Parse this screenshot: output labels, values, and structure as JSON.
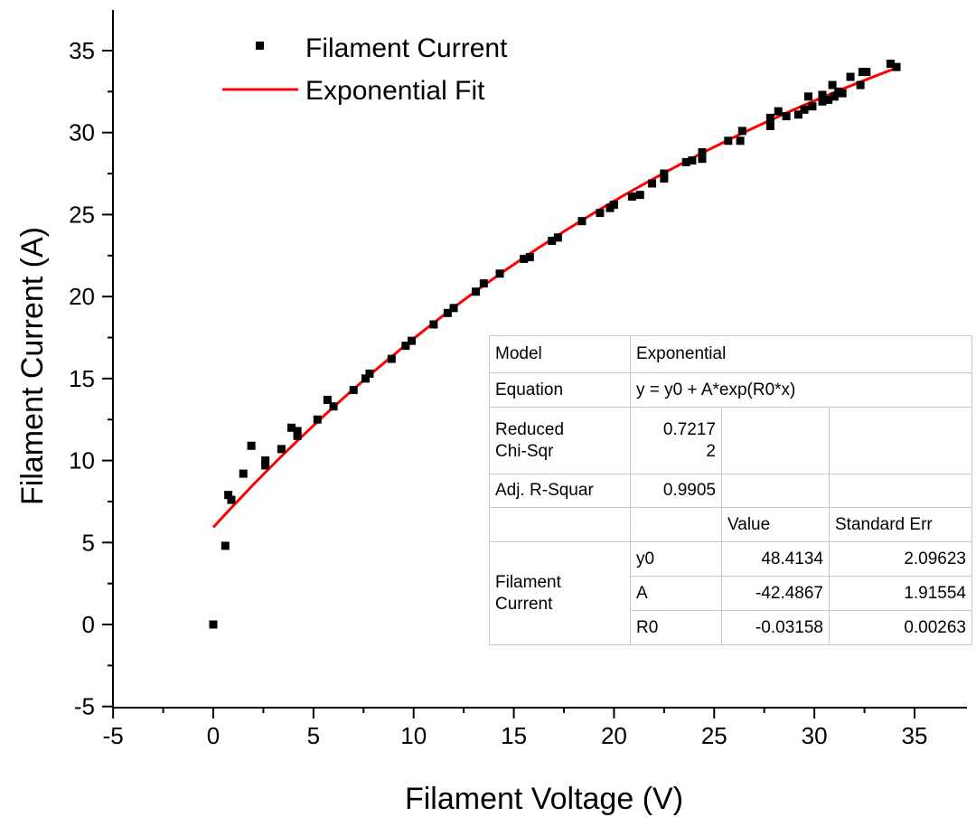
{
  "chart_data": {
    "type": "scatter",
    "xlabel": "Filament Voltage (V)",
    "ylabel": "Filament Current (A)",
    "xlim": [
      -5,
      37
    ],
    "ylim": [
      -5,
      37
    ],
    "x_ticks": [
      "-5",
      "0",
      "5",
      "10",
      "15",
      "20",
      "25",
      "30",
      "35"
    ],
    "y_ticks": [
      "-5",
      "0",
      "5",
      "10",
      "15",
      "20",
      "25",
      "30",
      "35"
    ],
    "grid": false,
    "legend_position": "top-left",
    "legend": [
      "Filament Current",
      "Exponential Fit"
    ],
    "series": [
      {
        "name": "Filament Current",
        "marker": "square",
        "color": "#000000",
        "points": [
          [
            0.0,
            0.0
          ],
          [
            0.6,
            4.8
          ],
          [
            0.75,
            7.9
          ],
          [
            0.9,
            7.6
          ],
          [
            1.5,
            9.2
          ],
          [
            1.9,
            10.9
          ],
          [
            2.6,
            9.7
          ],
          [
            2.6,
            10.0
          ],
          [
            3.4,
            10.7
          ],
          [
            3.9,
            12.0
          ],
          [
            4.2,
            11.5
          ],
          [
            4.2,
            11.8
          ],
          [
            5.2,
            12.5
          ],
          [
            5.7,
            13.7
          ],
          [
            6.0,
            13.3
          ],
          [
            7.0,
            14.3
          ],
          [
            7.6,
            15.0
          ],
          [
            7.8,
            15.3
          ],
          [
            8.9,
            16.2
          ],
          [
            9.6,
            17.0
          ],
          [
            9.9,
            17.3
          ],
          [
            11.0,
            18.3
          ],
          [
            11.7,
            19.0
          ],
          [
            12.0,
            19.3
          ],
          [
            13.1,
            20.3
          ],
          [
            13.5,
            20.8
          ],
          [
            14.3,
            21.4
          ],
          [
            15.5,
            22.3
          ],
          [
            15.8,
            22.4
          ],
          [
            16.9,
            23.4
          ],
          [
            17.2,
            23.6
          ],
          [
            18.4,
            24.6
          ],
          [
            19.3,
            25.1
          ],
          [
            19.8,
            25.4
          ],
          [
            20.0,
            25.6
          ],
          [
            20.9,
            26.1
          ],
          [
            21.3,
            26.2
          ],
          [
            21.9,
            26.9
          ],
          [
            22.5,
            27.2
          ],
          [
            22.5,
            27.5
          ],
          [
            23.6,
            28.2
          ],
          [
            23.9,
            28.3
          ],
          [
            24.4,
            28.4
          ],
          [
            24.4,
            28.8
          ],
          [
            25.7,
            29.5
          ],
          [
            26.3,
            29.5
          ],
          [
            26.4,
            30.1
          ],
          [
            27.8,
            30.4
          ],
          [
            27.8,
            30.9
          ],
          [
            28.2,
            31.3
          ],
          [
            28.6,
            31.0
          ],
          [
            29.2,
            31.1
          ],
          [
            29.5,
            31.4
          ],
          [
            29.7,
            32.2
          ],
          [
            29.9,
            31.6
          ],
          [
            30.4,
            31.9
          ],
          [
            30.4,
            32.3
          ],
          [
            30.7,
            32.0
          ],
          [
            30.9,
            32.9
          ],
          [
            31.0,
            32.2
          ],
          [
            31.2,
            32.5
          ],
          [
            31.4,
            32.4
          ],
          [
            31.8,
            33.4
          ],
          [
            32.3,
            32.9
          ],
          [
            32.4,
            33.7
          ],
          [
            32.6,
            33.7
          ],
          [
            33.8,
            34.2
          ],
          [
            34.1,
            34.0
          ]
        ]
      },
      {
        "name": "Exponential Fit",
        "color": "#ff0000",
        "model": {
          "y0": 48.4134,
          "A": -42.4867,
          "R0": -0.03158
        },
        "x_range": [
          0,
          34.1
        ]
      }
    ],
    "fit_table": {
      "model_label": "Model",
      "model_value": "Exponential",
      "equation_label": "Equation",
      "equation_value": "y = y0 + A*exp(R0*x)",
      "chisq_label_1": "Reduced",
      "chisq_label_2": "Chi-Sqr",
      "chisq_value_1": "0.7217",
      "chisq_value_2": "2",
      "adjr_label": "Adj. R-Squar",
      "adjr_value": "0.9905",
      "value_header": "Value",
      "stderr_header": "Standard Err",
      "group_label_1": "Filament",
      "group_label_2": "Current",
      "params": [
        {
          "name": "y0",
          "value": "48.4134",
          "stderr": "2.09623"
        },
        {
          "name": "A",
          "value": "-42.4867",
          "stderr": "1.91554"
        },
        {
          "name": "R0",
          "value": "-0.03158",
          "stderr": "0.00263"
        }
      ]
    }
  }
}
